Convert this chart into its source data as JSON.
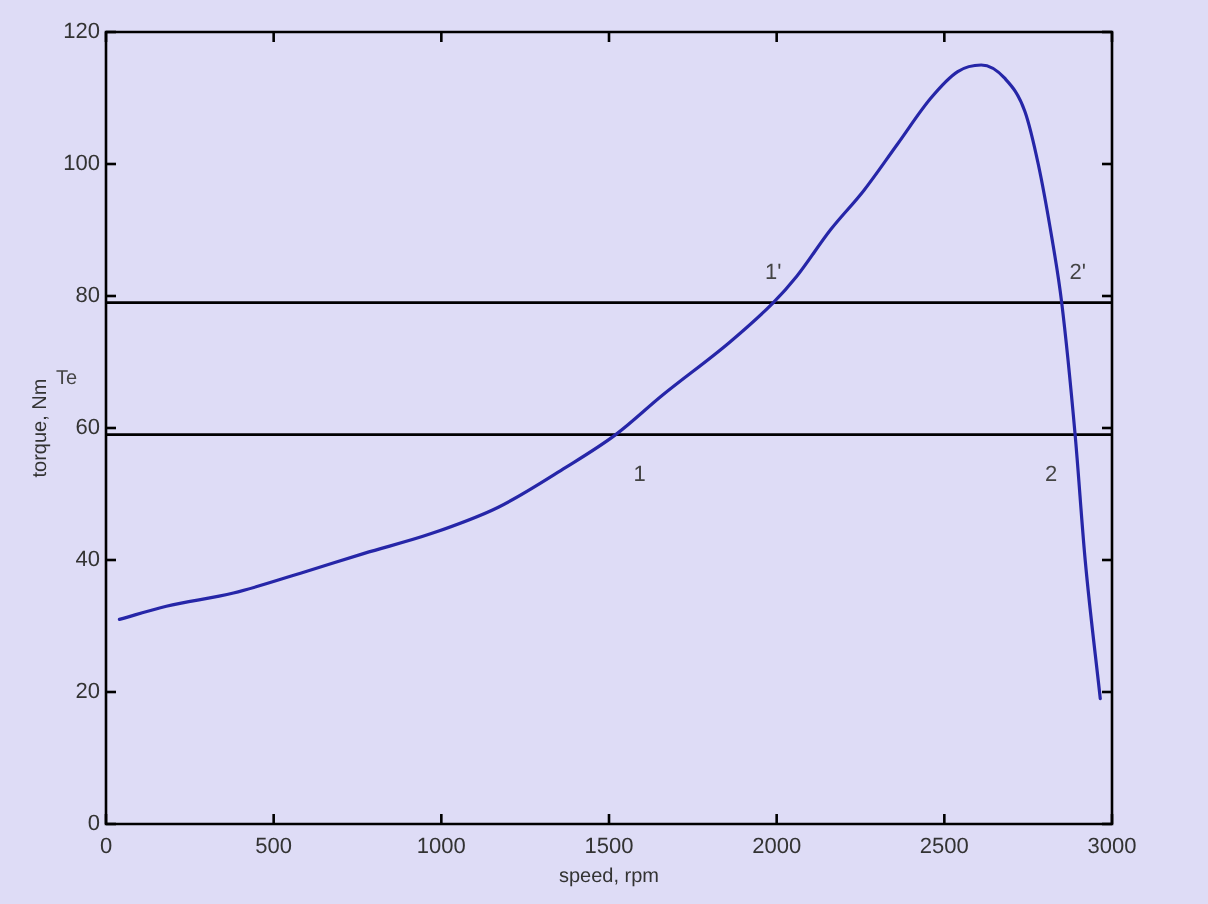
{
  "chart_data": {
    "type": "line",
    "xlabel": "speed, rpm",
    "ylabel": "torque, Nm",
    "x": [
      40,
      180,
      380,
      580,
      770,
      970,
      1170,
      1370,
      1520,
      1660,
      1860,
      1990,
      2060,
      2160,
      2260,
      2360,
      2460,
      2540,
      2610,
      2680,
      2740,
      2780,
      2820,
      2850,
      2890,
      2920,
      2965
    ],
    "values": [
      31,
      33,
      35,
      38,
      41,
      44,
      48,
      54,
      59,
      65,
      73,
      79,
      83,
      90,
      96,
      103,
      110,
      114,
      115,
      113,
      108,
      100,
      89,
      79,
      59,
      40,
      19
    ],
    "color": "#2626a8",
    "xlim": [
      0,
      3000
    ],
    "xticks": [
      0,
      500,
      1000,
      1500,
      2000,
      2500,
      3000
    ],
    "ylim": [
      0,
      120
    ],
    "yticks": [
      0,
      20,
      40,
      60,
      80,
      100,
      120
    ],
    "ref_lines": [
      {
        "axis": "y",
        "value": 79,
        "color": "#000000"
      },
      {
        "axis": "y",
        "value": 59,
        "color": "#000000"
      }
    ],
    "annotations": [
      "Te",
      {
        "text": "1",
        "x": 1520,
        "y": 59
      },
      {
        "text": "1'",
        "x": 1990,
        "y": 79
      },
      {
        "text": "2",
        "x": 2890,
        "y": 59
      },
      {
        "text": "2'",
        "x": 2850,
        "y": 79
      }
    ]
  }
}
